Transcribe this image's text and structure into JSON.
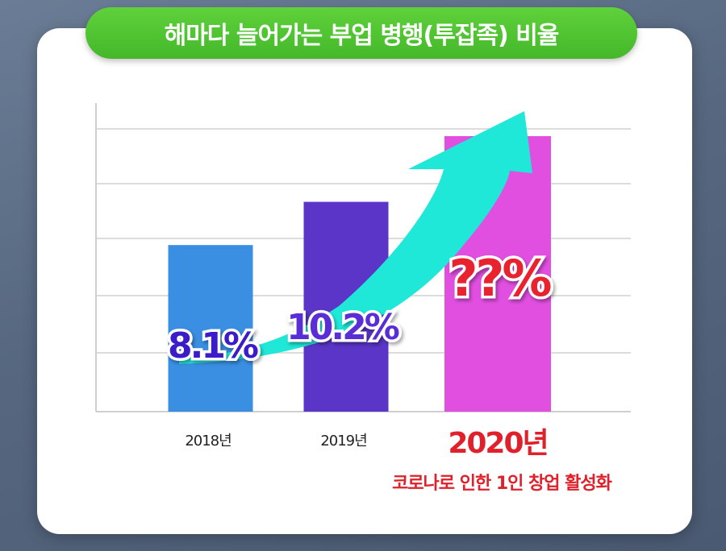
{
  "title": "해마다 늘어가는 부업 병행(투잡족) 비율",
  "colors": {
    "background": "#56677f",
    "title_pill": "#4cbf2e",
    "arrow": "#1fe8d8",
    "highlight_text": "#e0202a",
    "grid": "#dcdcdc"
  },
  "chart_data": {
    "type": "bar",
    "categories": [
      "2018년",
      "2019년",
      "2020년"
    ],
    "values": [
      8.1,
      10.2,
      null
    ],
    "value_labels": [
      "8.1%",
      "10.2%",
      "??%"
    ],
    "bar_colors": [
      "#3a8fe2",
      "#5a35c8",
      "#e14fe0"
    ],
    "label_colors": [
      "#3b1fc9",
      "#5a2fd6",
      "#e8242f"
    ],
    "highlight_category": "2020년",
    "annotation": "코로나로 인한 1인 창업 활성화",
    "ylim": [
      0,
      15
    ],
    "grid": true,
    "title": "",
    "xlabel": "",
    "ylabel": ""
  }
}
